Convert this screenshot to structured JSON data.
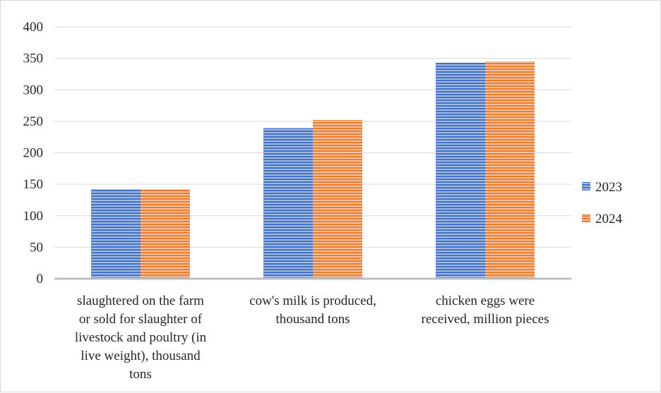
{
  "chart_data": {
    "type": "bar",
    "title": "",
    "xlabel": "",
    "ylabel": "",
    "ylim": [
      0,
      400
    ],
    "yticks": [
      0,
      50,
      100,
      150,
      200,
      250,
      300,
      350,
      400
    ],
    "grid": true,
    "legend_position": "right",
    "categories": [
      [
        "slaughtered on the farm",
        "or sold for slaughter of",
        "livestock and poultry (in",
        "live weight), thousand",
        "tons"
      ],
      [
        "cow's milk is produced,",
        "thousand tons"
      ],
      [
        "chicken eggs were",
        "received, million pieces"
      ]
    ],
    "series": [
      {
        "name": "2023",
        "color": "#4472c4",
        "values": [
          142,
          239,
          343
        ]
      },
      {
        "name": "2024",
        "color": "#ed7d31",
        "values": [
          142,
          252,
          345
        ]
      }
    ]
  }
}
